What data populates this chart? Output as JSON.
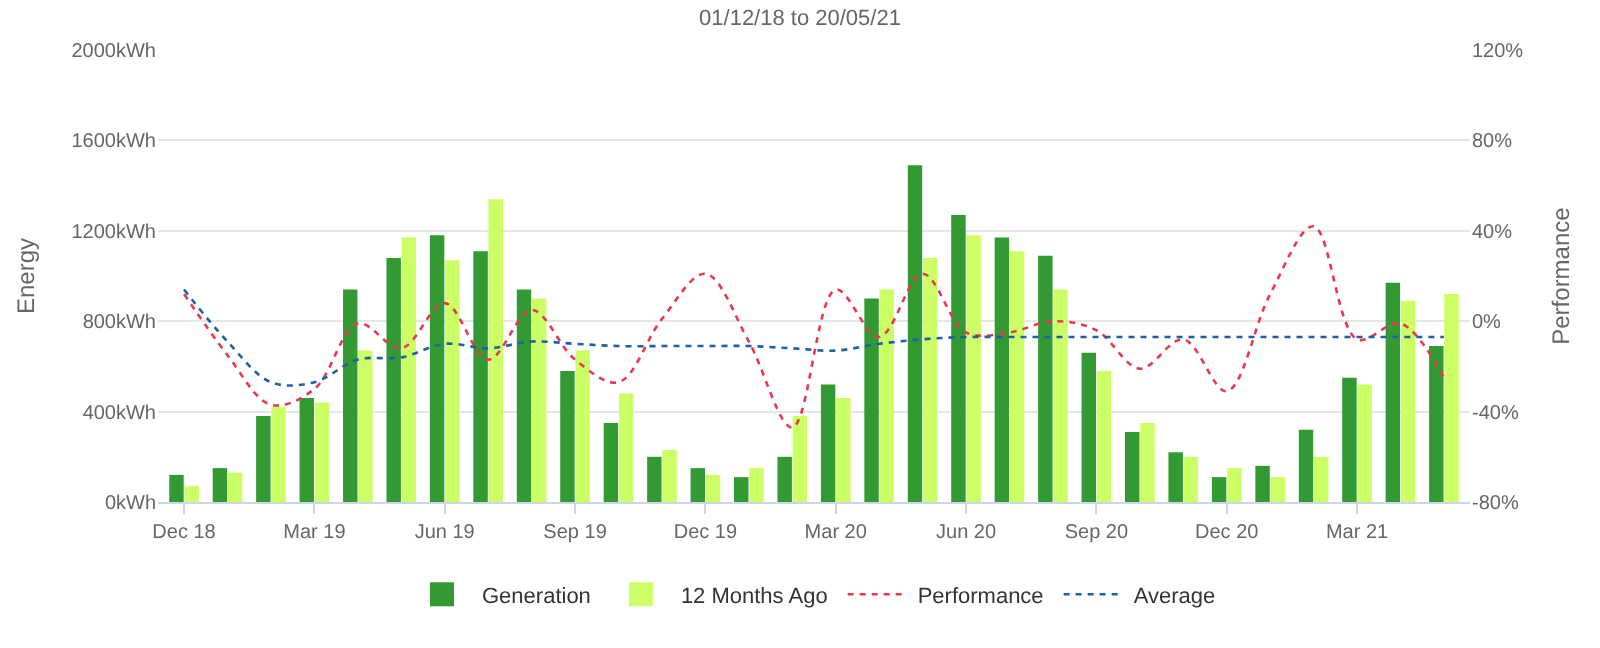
{
  "chart_data": {
    "type": "bar",
    "title": "01/12/18 to 20/05/21",
    "ylabel": "Energy",
    "y2label": "Performance",
    "categories": [
      "Dec 18",
      null,
      null,
      "Mar 19",
      null,
      null,
      "Jun 19",
      null,
      null,
      "Sep 19",
      null,
      null,
      "Dec 19",
      null,
      null,
      "Mar 20",
      null,
      null,
      "Jun 20",
      null,
      null,
      "Sep 20",
      null,
      null,
      "Dec 20",
      null,
      null,
      "Mar 21",
      null,
      null
    ],
    "series": [
      {
        "name": "Generation",
        "color": "#339933",
        "values": [
          120,
          150,
          380,
          460,
          940,
          1080,
          1180,
          1110,
          940,
          580,
          350,
          200,
          150,
          110,
          200,
          520,
          900,
          1490,
          1270,
          1170,
          1090,
          660,
          310,
          220,
          110,
          160,
          320,
          550,
          970,
          690
        ]
      },
      {
        "name": "12 Months Ago",
        "color": "#ccff66",
        "values": [
          70,
          130,
          420,
          440,
          670,
          1170,
          1070,
          1340,
          900,
          670,
          480,
          230,
          120,
          150,
          380,
          460,
          940,
          1080,
          1180,
          1110,
          940,
          580,
          350,
          200,
          150,
          110,
          200,
          520,
          890,
          920
        ]
      },
      {
        "name": "Performance",
        "type": "line",
        "axis": "y2",
        "color": "#e8384f",
        "line_style": "dotted",
        "values": [
          12,
          -15,
          -37,
          -30,
          -1,
          -12,
          8,
          -17,
          5,
          -17,
          -27,
          1,
          21,
          -9,
          -47,
          14,
          -7,
          21,
          -5,
          -5,
          0,
          -4,
          -21,
          -8,
          -31,
          12,
          42,
          -8,
          -1,
          -25
        ]
      },
      {
        "name": "Average",
        "type": "line",
        "axis": "y2",
        "color": "#1f5fa8",
        "line_style": "dotted",
        "values": [
          14,
          -9,
          -27,
          -27,
          -17,
          -16,
          -10,
          -12,
          -9,
          -10,
          -11,
          -11,
          -11,
          -11,
          -12,
          -13,
          -10,
          -8,
          -7,
          -7,
          -7,
          -7,
          -7,
          -7,
          -7,
          -7,
          -7,
          -7,
          -7,
          -7
        ]
      }
    ],
    "ylim": [
      0,
      2000
    ],
    "yticks": [
      {
        "value": 0,
        "label": "0kWh"
      },
      {
        "value": 400,
        "label": "400kWh"
      },
      {
        "value": 800,
        "label": "800kWh"
      },
      {
        "value": 1200,
        "label": "1200kWh"
      },
      {
        "value": 1600,
        "label": "1600kWh"
      },
      {
        "value": 2000,
        "label": "2000kWh"
      }
    ],
    "y2lim": [
      -80,
      120
    ],
    "y2ticks": [
      {
        "value": -80,
        "label": "-80%"
      },
      {
        "value": -40,
        "label": "-40%"
      },
      {
        "value": 0,
        "label": "0%"
      },
      {
        "value": 40,
        "label": "40%"
      },
      {
        "value": 80,
        "label": "80%"
      },
      {
        "value": 120,
        "label": "120%"
      }
    ],
    "grid": "y",
    "legend": "bottom",
    "marker": "none"
  }
}
